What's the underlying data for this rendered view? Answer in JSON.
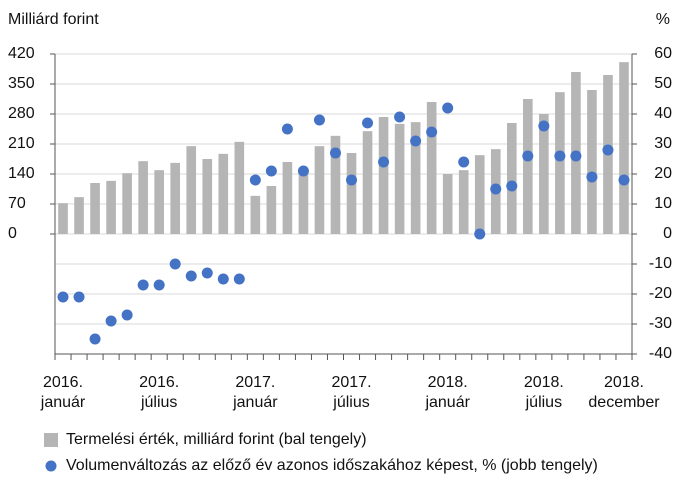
{
  "chart_data": {
    "type": "bar",
    "y_label": "Milliárd forint",
    "y2_label": "%",
    "categories": [
      [
        "2016.",
        "január"
      ],
      null,
      null,
      null,
      null,
      null,
      [
        "2016.",
        "július"
      ],
      null,
      null,
      null,
      null,
      null,
      [
        "2017.",
        "január"
      ],
      null,
      null,
      null,
      null,
      null,
      [
        "2017.",
        "július"
      ],
      null,
      null,
      null,
      null,
      null,
      [
        "2018.",
        "január"
      ],
      null,
      null,
      null,
      null,
      null,
      [
        "2018.",
        "július"
      ],
      null,
      null,
      null,
      null,
      [
        "2018.",
        "december"
      ]
    ],
    "ylim": [
      -280,
      420
    ],
    "yticks": [
      0,
      70,
      140,
      210,
      280,
      350,
      420
    ],
    "y2lim": [
      -40,
      60
    ],
    "y2ticks": [
      -40,
      -30,
      -20,
      -10,
      0,
      10,
      20,
      30,
      40,
      50,
      60
    ],
    "grid": true,
    "legend": "bottom",
    "series": [
      {
        "name": "Termelési érték, milliárd forint (bal tengely)",
        "type": "bar",
        "color": "#b5b5b5",
        "values": [
          72,
          86,
          119,
          124,
          142,
          170,
          149,
          166,
          205,
          175,
          187,
          215,
          89,
          112,
          168,
          147,
          205,
          229,
          189,
          240,
          273,
          257,
          261,
          308,
          140,
          149,
          184,
          198,
          259,
          315,
          280,
          331,
          378,
          336,
          371,
          401
        ]
      },
      {
        "name": "Volumenváltozás az előző év azonos időszakához képest, % (jobb tengely)",
        "type": "scatter",
        "axis": "y2",
        "color": "#4472c4",
        "values": [
          -21,
          -21,
          -35,
          -29,
          -27,
          -17,
          -17,
          -10,
          -14,
          -13,
          -15,
          -15,
          18,
          21,
          35,
          21,
          38,
          27,
          18,
          37,
          24,
          39,
          31,
          34,
          42,
          24,
          0,
          15,
          16,
          26,
          36,
          26,
          26,
          19,
          28,
          18
        ]
      }
    ]
  }
}
